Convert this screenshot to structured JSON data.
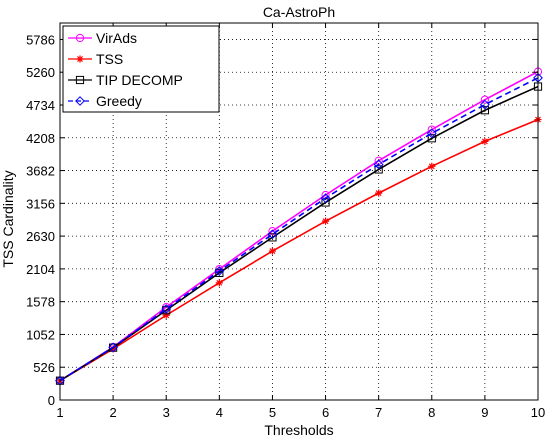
{
  "chart_data": {
    "type": "line",
    "title": "Ca-AstroPh",
    "xlabel": "Thresholds",
    "ylabel": "TSS Cardinality",
    "x": [
      1,
      2,
      3,
      4,
      5,
      6,
      7,
      8,
      9,
      10
    ],
    "xlim": [
      1,
      10
    ],
    "ylim": [
      0,
      6050
    ],
    "yticks": [
      0,
      526,
      1052,
      1578,
      2104,
      2630,
      3156,
      3682,
      4208,
      4734,
      5260,
      5786
    ],
    "grid": "dotted",
    "legend_position": "top-left",
    "series": [
      {
        "name": "VirAds",
        "color": "#ff00ff",
        "marker": "circle",
        "line": "solid",
        "values": [
          310,
          850,
          1490,
          2100,
          2710,
          3290,
          3840,
          4340,
          4820,
          5270
        ]
      },
      {
        "name": "TSS",
        "color": "#ff0000",
        "marker": "star",
        "line": "solid",
        "values": [
          310,
          820,
          1360,
          1880,
          2390,
          2870,
          3320,
          3750,
          4150,
          4500
        ]
      },
      {
        "name": "TIP DECOMP",
        "color": "#000000",
        "marker": "square",
        "line": "solid",
        "values": [
          310,
          840,
          1440,
          2040,
          2610,
          3170,
          3700,
          4200,
          4650,
          5030
        ]
      },
      {
        "name": "Greedy",
        "color": "#0000ff",
        "marker": "diamond",
        "line": "dashed",
        "values": [
          310,
          845,
          1460,
          2070,
          2660,
          3240,
          3780,
          4280,
          4740,
          5170
        ]
      }
    ]
  }
}
